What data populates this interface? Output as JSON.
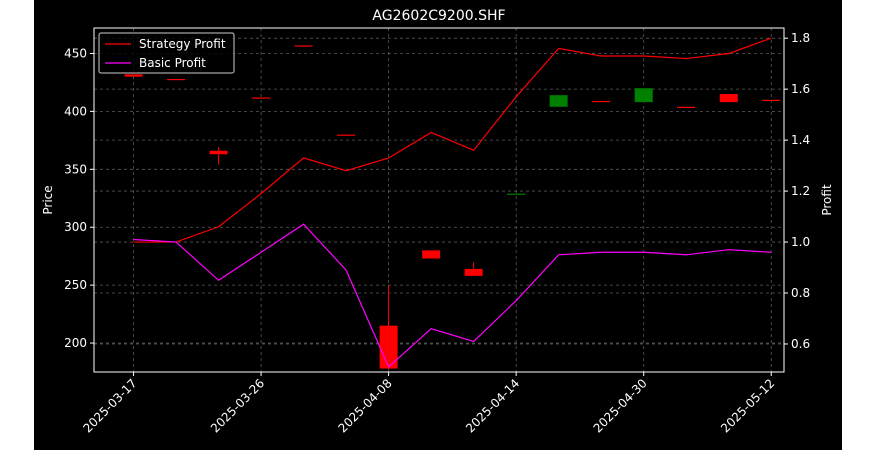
{
  "chart_data": {
    "type": "candlestick+line",
    "title": "AG2602C9200.SHF",
    "xlabel": "",
    "ylabel_left": "Price",
    "ylabel_right": "Profit",
    "ylim_left": [
      175,
      472
    ],
    "ylim_right": [
      0.49,
      1.84
    ],
    "yticks_left": [
      200,
      250,
      300,
      350,
      400,
      450
    ],
    "yticks_right": [
      0.6,
      0.8,
      1.0,
      1.2,
      1.4,
      1.6,
      1.8
    ],
    "ytick_labels_right": [
      "0.6",
      "0.8",
      "1.0",
      "1.2",
      "1.4",
      "1.6",
      "1.8"
    ],
    "x_tick_dates": [
      "2025-03-17",
      "2025-03-26",
      "2025-04-08",
      "2025-04-14",
      "2025-04-30",
      "2025-05-12"
    ],
    "x_tick_positions": [
      0,
      3,
      6,
      9,
      12,
      15
    ],
    "x_range": [
      -0.93,
      15.3
    ],
    "grid": true,
    "legend_position": "upper-left",
    "colors": {
      "up": "#008000",
      "down": "#ff0000",
      "background": "#000000",
      "grid": "#808080",
      "text": "#ffffff"
    },
    "candles": [
      {
        "open": 432,
        "high": 432,
        "low": 430,
        "close": 430
      },
      {
        "open": 428,
        "high": 428,
        "low": 427,
        "close": 427
      },
      {
        "open": 366,
        "high": 369,
        "low": 354,
        "close": 363
      },
      {
        "open": 412,
        "high": 412,
        "low": 411,
        "close": 411
      },
      {
        "open": 457,
        "high": 457,
        "low": 456,
        "close": 456
      },
      {
        "open": 380,
        "high": 380,
        "low": 379,
        "close": 379
      },
      {
        "open": 215,
        "high": 250,
        "low": 177,
        "close": 178
      },
      {
        "open": 280,
        "high": 280,
        "low": 273,
        "close": 273
      },
      {
        "open": 264,
        "high": 270,
        "low": 258,
        "close": 258
      },
      {
        "open": 328,
        "high": 329,
        "low": 328,
        "close": 329
      },
      {
        "open": 404,
        "high": 414,
        "low": 404,
        "close": 414
      },
      {
        "open": 409,
        "high": 409,
        "low": 408,
        "close": 408
      },
      {
        "open": 408,
        "high": 420,
        "low": 408,
        "close": 420
      },
      {
        "open": 404,
        "high": 404,
        "low": 403,
        "close": 403
      },
      {
        "open": 415,
        "high": 415,
        "low": 408,
        "close": 408
      },
      {
        "open": 410,
        "high": 410,
        "low": 409,
        "close": 409
      }
    ],
    "series": [
      {
        "name": "Strategy Profit",
        "color": "#ff0000",
        "x": [
          0,
          1,
          2,
          3,
          4,
          5,
          6,
          7,
          8,
          9,
          10,
          11,
          12,
          13,
          14,
          15
        ],
        "values": [
          1.0,
          1.0,
          1.06,
          1.19,
          1.33,
          1.28,
          1.33,
          1.43,
          1.36,
          1.57,
          1.76,
          1.73,
          1.73,
          1.72,
          1.74,
          1.8
        ]
      },
      {
        "name": "Basic Profit",
        "color": "#ff00ff",
        "x": [
          0,
          1,
          2,
          3,
          4,
          5,
          6,
          7,
          8,
          9,
          10,
          11,
          12,
          13,
          14,
          15
        ],
        "values": [
          1.01,
          1.0,
          0.85,
          0.96,
          1.07,
          0.89,
          0.51,
          0.66,
          0.61,
          0.77,
          0.95,
          0.96,
          0.96,
          0.95,
          0.97,
          0.96
        ]
      }
    ]
  }
}
